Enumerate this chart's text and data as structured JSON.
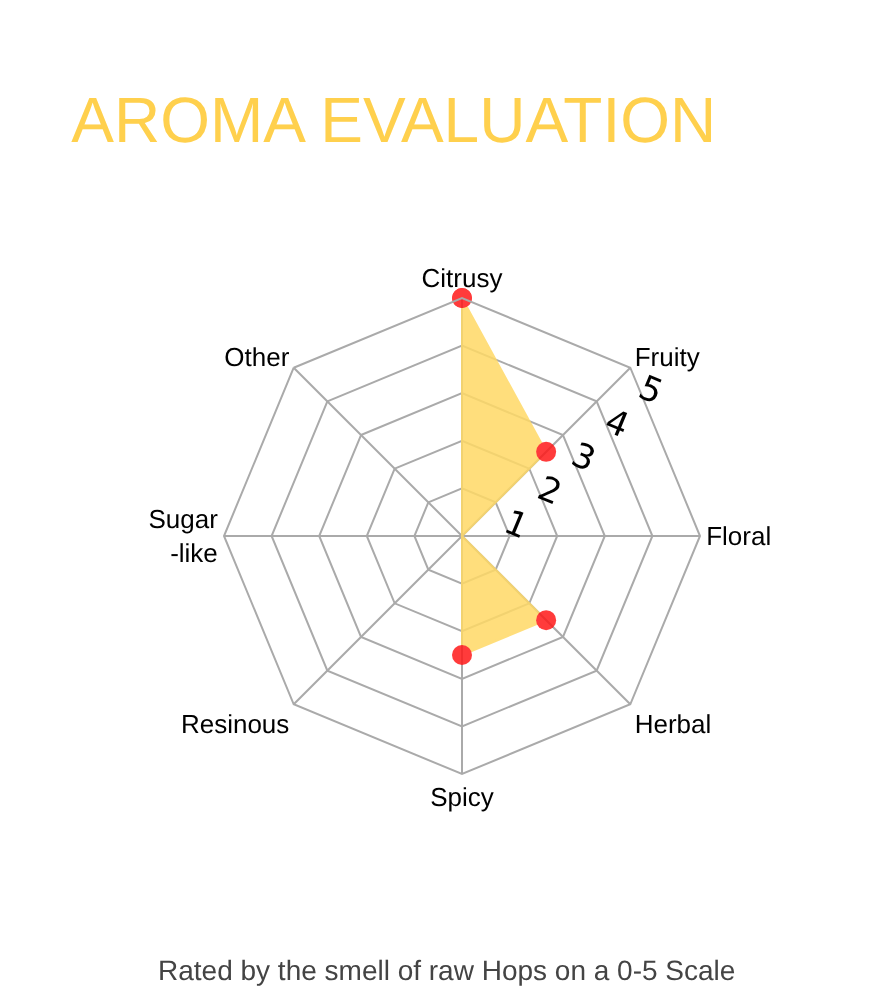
{
  "chart_data": {
    "type": "radar",
    "title": "AROMA EVALUATION",
    "annotations": [
      "Rated by the smell of raw Hops on a 0-5 Scale"
    ],
    "categories": [
      "Citrusy",
      "Fruity",
      "Floral",
      "Herbal",
      "Spicy",
      "Resinous",
      "Sugar\n-like",
      "Other"
    ],
    "series": [
      {
        "color": "#ffd966",
        "colors": [
          "#ff1a1a",
          "#ff1a1a",
          "#ff1a1a",
          "#ff1a1a",
          "#ff1a1a",
          "#ff1a1a",
          "#ff1a1a",
          "#ff1a1a"
        ],
        "values": [
          5,
          2.5,
          0,
          2.5,
          2.5,
          0,
          0,
          0
        ]
      }
    ],
    "ylim": [
      0,
      5
    ],
    "yticks": [
      1,
      2,
      3,
      4,
      5
    ],
    "grid": true,
    "marker": "circle"
  }
}
